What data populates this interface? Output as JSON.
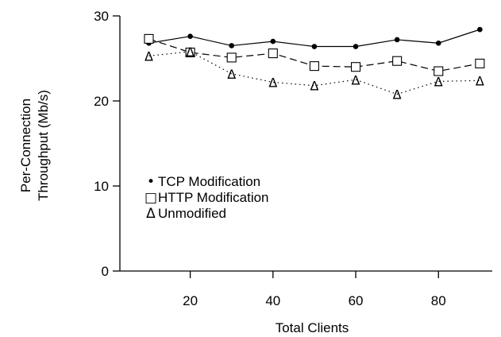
{
  "chart_data": {
    "type": "line",
    "title": "",
    "xlabel": "Total Clients",
    "ylabel_lines": [
      "Per-Connection",
      "Throughput (Mb/s)"
    ],
    "x": [
      10,
      20,
      30,
      40,
      50,
      60,
      70,
      80,
      90
    ],
    "xlim": [
      3,
      93
    ],
    "ylim": [
      0,
      30
    ],
    "x_ticks": [
      20,
      40,
      60,
      80
    ],
    "y_ticks": [
      0,
      10,
      20,
      30
    ],
    "x_tick_labels": [
      "20",
      "40",
      "60",
      "80"
    ],
    "y_tick_labels": [
      "0",
      "10",
      "20",
      "30"
    ],
    "grid": false,
    "legend_position": "left-center",
    "series": [
      {
        "name": "TCP Modification",
        "marker": "filled-circle",
        "marker_glyph": "•",
        "line": "solid",
        "values": [
          26.8,
          27.6,
          26.5,
          27.0,
          26.4,
          26.4,
          27.2,
          26.8,
          28.4
        ]
      },
      {
        "name": "HTTP Modification",
        "marker": "open-square",
        "marker_glyph": "□",
        "line": "dashed",
        "values": [
          27.3,
          25.7,
          25.1,
          25.6,
          24.1,
          24.0,
          24.7,
          23.5,
          24.4
        ]
      },
      {
        "name": "Unmodified",
        "marker": "triangle",
        "marker_glyph": "Δ",
        "line": "dotted",
        "values": [
          25.3,
          25.8,
          23.2,
          22.2,
          21.8,
          22.5,
          20.8,
          22.3,
          22.4
        ]
      }
    ]
  }
}
